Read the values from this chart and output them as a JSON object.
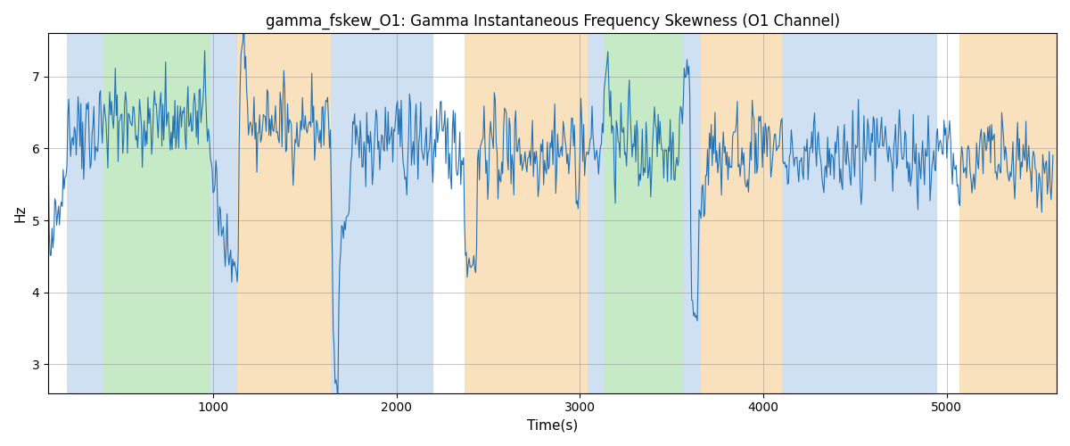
{
  "title": "gamma_fskew_O1: Gamma Instantaneous Frequency Skewness (O1 Channel)",
  "xlabel": "Time(s)",
  "ylabel": "Hz",
  "xlim": [
    100,
    5600
  ],
  "ylim": [
    2.6,
    7.6
  ],
  "yticks": [
    3,
    4,
    5,
    6,
    7
  ],
  "xticks": [
    1000,
    2000,
    3000,
    4000,
    5000
  ],
  "line_color": "#2171b5",
  "line_width": 0.8,
  "background_bands": [
    {
      "xmin": 200,
      "xmax": 400,
      "color": "#a8c8e8",
      "alpha": 0.55
    },
    {
      "xmin": 400,
      "xmax": 980,
      "color": "#98d898",
      "alpha": 0.55
    },
    {
      "xmin": 980,
      "xmax": 1130,
      "color": "#a8c8e8",
      "alpha": 0.55
    },
    {
      "xmin": 1130,
      "xmax": 1640,
      "color": "#f5c98a",
      "alpha": 0.55
    },
    {
      "xmin": 1640,
      "xmax": 2200,
      "color": "#a8c8e8",
      "alpha": 0.55
    },
    {
      "xmin": 2200,
      "xmax": 2370,
      "color": "#ffffff",
      "alpha": 0.0
    },
    {
      "xmin": 2370,
      "xmax": 3040,
      "color": "#f5c98a",
      "alpha": 0.55
    },
    {
      "xmin": 3040,
      "xmax": 3130,
      "color": "#a8c8e8",
      "alpha": 0.55
    },
    {
      "xmin": 3130,
      "xmax": 3560,
      "color": "#98d898",
      "alpha": 0.55
    },
    {
      "xmin": 3560,
      "xmax": 3660,
      "color": "#a8c8e8",
      "alpha": 0.55
    },
    {
      "xmin": 3660,
      "xmax": 4100,
      "color": "#f5c98a",
      "alpha": 0.55
    },
    {
      "xmin": 4100,
      "xmax": 4950,
      "color": "#a8c8e8",
      "alpha": 0.55
    },
    {
      "xmin": 4950,
      "xmax": 5070,
      "color": "#ffffff",
      "alpha": 0.0
    },
    {
      "xmin": 5070,
      "xmax": 5600,
      "color": "#f5c98a",
      "alpha": 0.55
    }
  ],
  "seed": 42,
  "n_points": 1080,
  "t_start": 100,
  "t_end": 5580,
  "title_fontsize": 12,
  "label_fontsize": 11
}
